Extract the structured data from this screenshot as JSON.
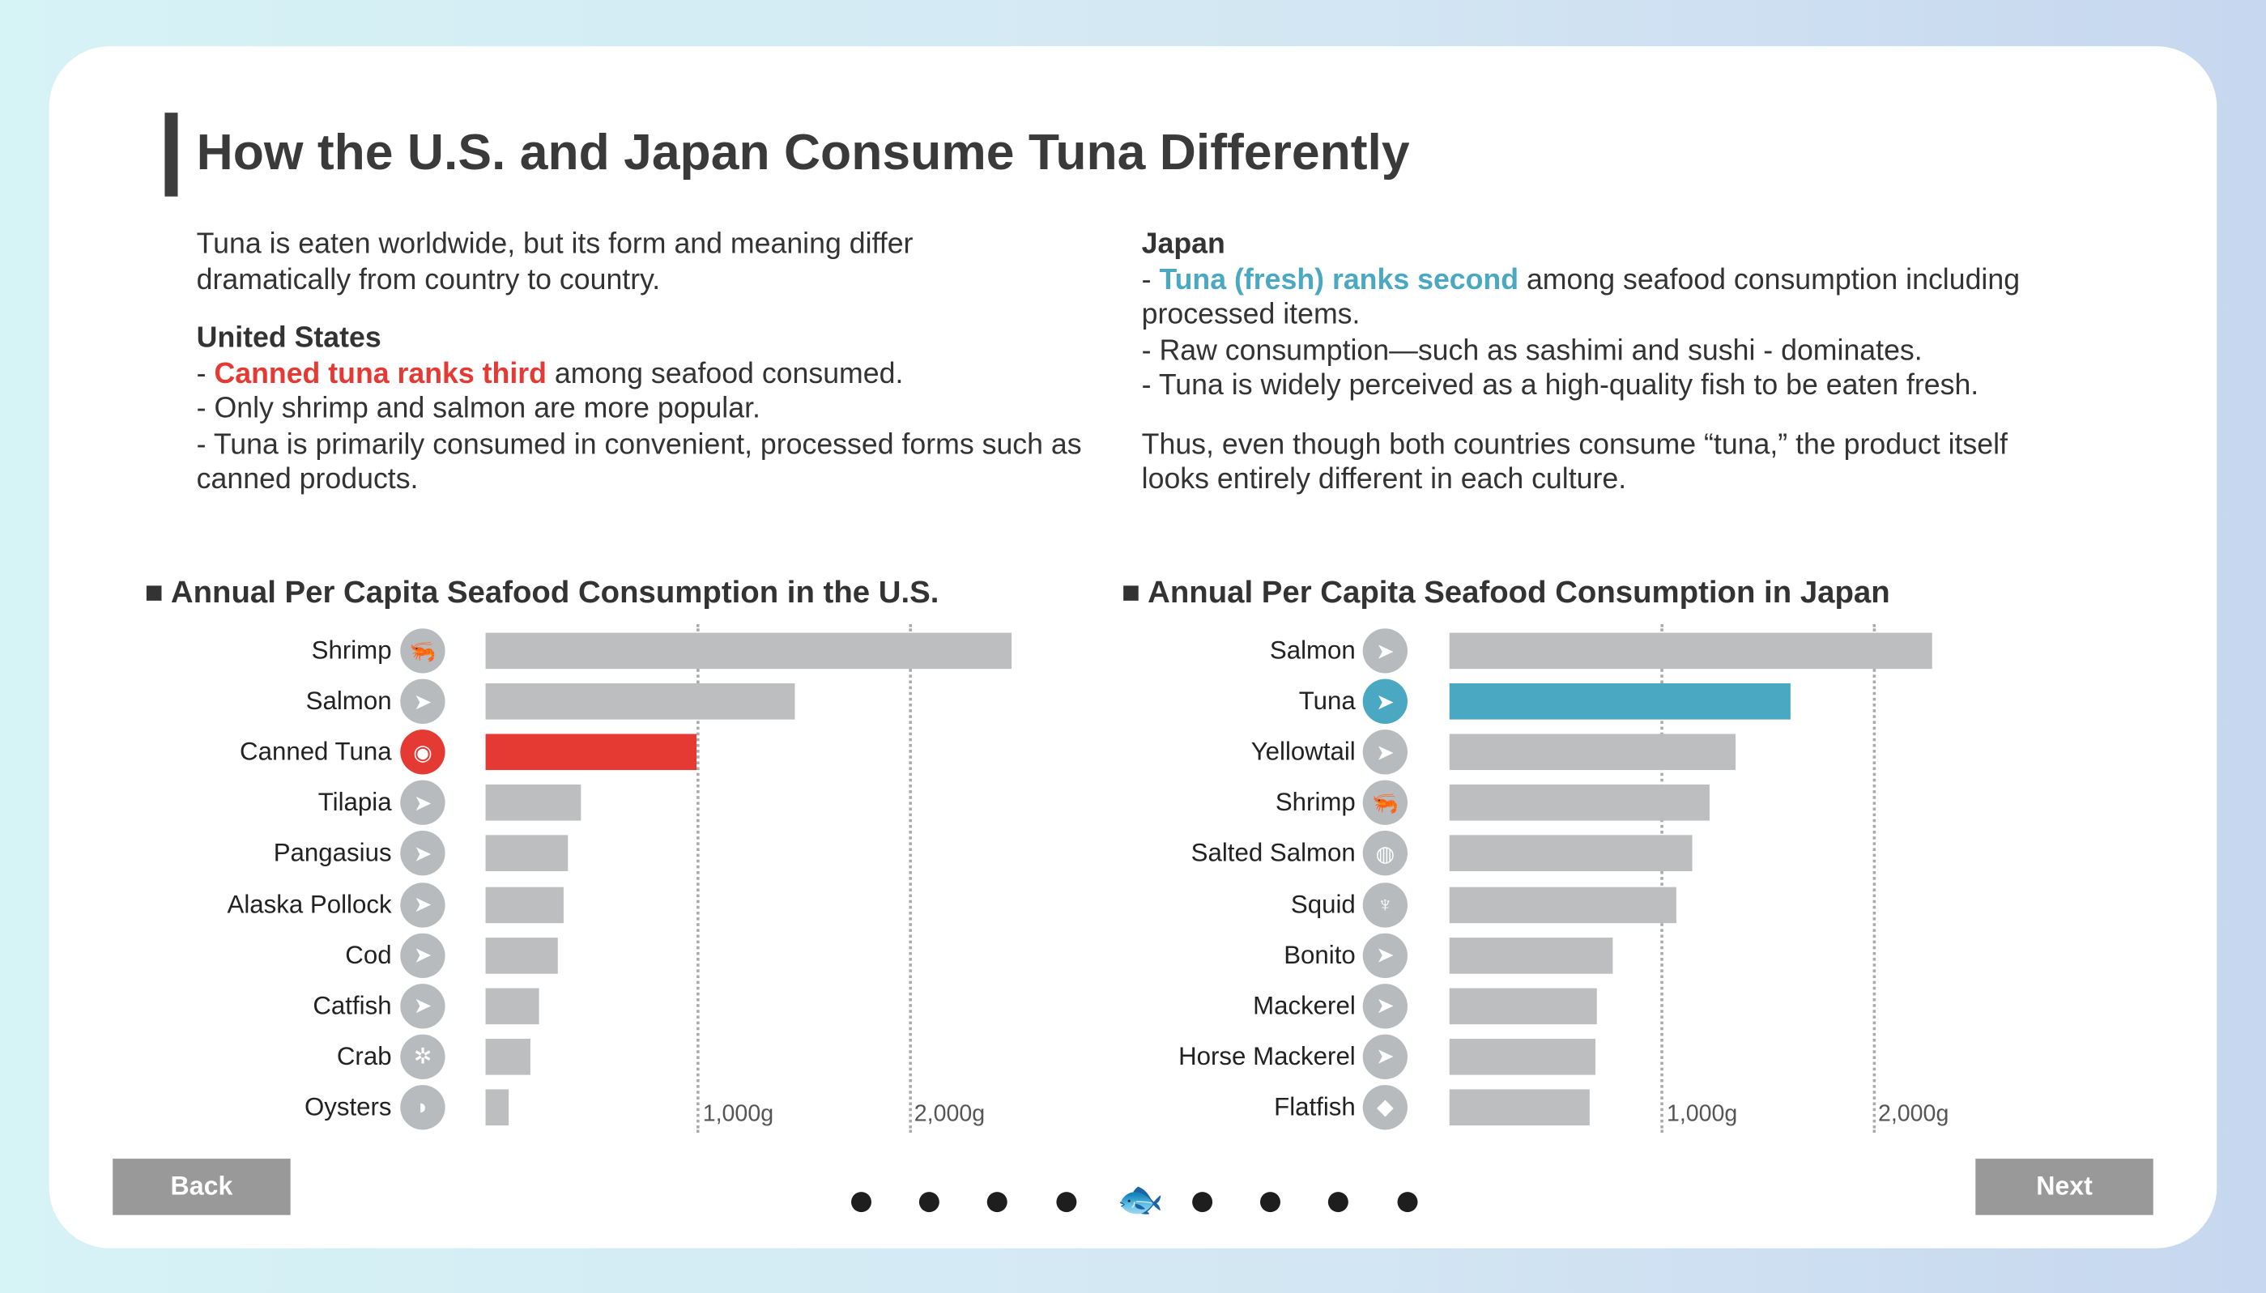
{
  "title": "How the U.S. and Japan Consume Tuna Differently",
  "intro": "Tuna is eaten worldwide, but its form and meaning differ dramatically from country to country.",
  "us": {
    "heading": "United States",
    "line1_highlight": "Canned tuna ranks third",
    "line1_rest": " among seafood consumed.",
    "line2": "- Only shrimp and salmon are more popular.",
    "line3": "- Tuna is primarily consumed in convenient, processed forms such as canned products."
  },
  "japan": {
    "heading": "Japan",
    "line1_highlight": "Tuna (fresh) ranks second",
    "line1_rest": " among seafood consumption including processed items.",
    "line2": "- Raw consumption—such as sashimi and sushi - dominates.",
    "line3": "- Tuna is widely perceived as a high-quality fish to be eaten fresh."
  },
  "conclusion": "Thus, even though both countries consume “tuna,” the product itself looks entirely different in each culture.",
  "colors": {
    "us_highlight": "#e53a33",
    "japan_highlight": "#4aa8c2",
    "bar": "#bcbebf"
  },
  "chart_data": [
    {
      "type": "bar",
      "orientation": "horizontal",
      "title": "Annual Per Capita Seafood Consumption in the U.S.",
      "categories": [
        "Shrimp",
        "Salmon",
        "Canned Tuna",
        "Tilapia",
        "Pangasius",
        "Alaska Pollock",
        "Cod",
        "Catfish",
        "Crab",
        "Oysters"
      ],
      "icons": [
        "shrimp-icon",
        "fish-icon",
        "tuna-can-icon",
        "fish-icon",
        "fish-icon",
        "fish-icon",
        "fish-icon",
        "fish-icon",
        "crab-icon",
        "oyster-icon"
      ],
      "values": [
        2490,
        1460,
        1000,
        450,
        390,
        370,
        340,
        250,
        210,
        110
      ],
      "highlight": "Canned Tuna",
      "xticks": [
        "1,000g",
        "2,000g"
      ],
      "xtick_values": [
        1000,
        2000
      ],
      "xlim": [
        0,
        2600
      ],
      "grid": true
    },
    {
      "type": "bar",
      "orientation": "horizontal",
      "title": "Annual Per Capita Seafood Consumption in Japan",
      "categories": [
        "Salmon",
        "Tuna",
        "Yellowtail",
        "Shrimp",
        "Salted Salmon",
        "Squid",
        "Bonito",
        "Mackerel",
        "Horse Mackerel",
        "Flatfish"
      ],
      "icons": [
        "fish-icon",
        "tuna-icon",
        "fish-icon",
        "shrimp-icon",
        "salmon-steak-icon",
        "squid-icon",
        "fish-icon",
        "fish-icon",
        "fish-icon",
        "flatfish-icon"
      ],
      "values": [
        2280,
        1610,
        1350,
        1230,
        1150,
        1070,
        770,
        700,
        690,
        660
      ],
      "highlight": "Tuna",
      "xticks": [
        "1,000g",
        "2,000g"
      ],
      "xtick_values": [
        1000,
        2000
      ],
      "xlim": [
        0,
        2600
      ],
      "grid": true
    }
  ],
  "nav": {
    "back": "Back",
    "next": "Next",
    "pages": 9,
    "current": 5
  }
}
